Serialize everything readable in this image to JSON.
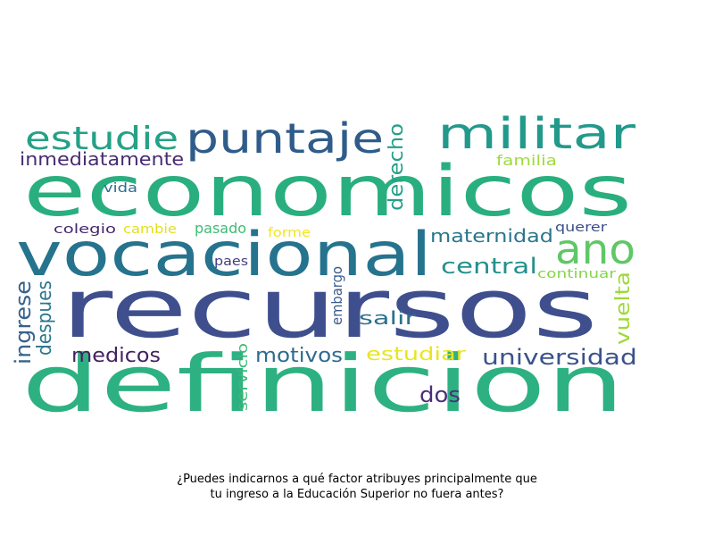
{
  "caption": {
    "line1": "¿Puedes indicarnos a qué factor atribuyes principalmente que",
    "line2": "tu ingreso a la Educación Superior no fuera antes?"
  },
  "words": [
    {
      "text": "recursos",
      "color": "#3f4f8e"
    },
    {
      "text": "definicion",
      "color": "#2eb182"
    },
    {
      "text": "economicos",
      "color": "#29af7f"
    },
    {
      "text": "vocacional",
      "color": "#26738e"
    },
    {
      "text": "puntaje",
      "color": "#2f5c8a"
    },
    {
      "text": "militar",
      "color": "#22998b"
    },
    {
      "text": "estudie",
      "color": "#24a186"
    },
    {
      "text": "ano",
      "color": "#5fc766"
    },
    {
      "text": "inmediatamente",
      "color": "#462c73"
    },
    {
      "text": "derecho",
      "color": "#24a088"
    },
    {
      "text": "maternidad",
      "color": "#2a768e"
    },
    {
      "text": "central",
      "color": "#23908d"
    },
    {
      "text": "universidad",
      "color": "#3a528b"
    },
    {
      "text": "motivos",
      "color": "#2f6b8e"
    },
    {
      "text": "estudiar",
      "color": "#e8e520"
    },
    {
      "text": "medicos",
      "color": "#44215f"
    },
    {
      "text": "dos",
      "color": "#4a2f7a"
    },
    {
      "text": "salir",
      "color": "#2d718e"
    },
    {
      "text": "ingrese",
      "color": "#35628d"
    },
    {
      "text": "despues",
      "color": "#2b778e"
    },
    {
      "text": "vuelta",
      "color": "#9fd938"
    },
    {
      "text": "familia",
      "color": "#9ddb3a"
    },
    {
      "text": "vida",
      "color": "#2f6c8e"
    },
    {
      "text": "querer",
      "color": "#3c4f8a"
    },
    {
      "text": "colegio",
      "color": "#45276b"
    },
    {
      "text": "cambie",
      "color": "#e3e01c"
    },
    {
      "text": "pasado",
      "color": "#3dbc74"
    },
    {
      "text": "forme",
      "color": "#f3e51e"
    },
    {
      "text": "paes",
      "color": "#433e84"
    },
    {
      "text": "continuar",
      "color": "#86d549"
    },
    {
      "text": "embargo",
      "color": "#3a5a8c"
    },
    {
      "text": "servicio",
      "color": "#3cba76"
    }
  ]
}
